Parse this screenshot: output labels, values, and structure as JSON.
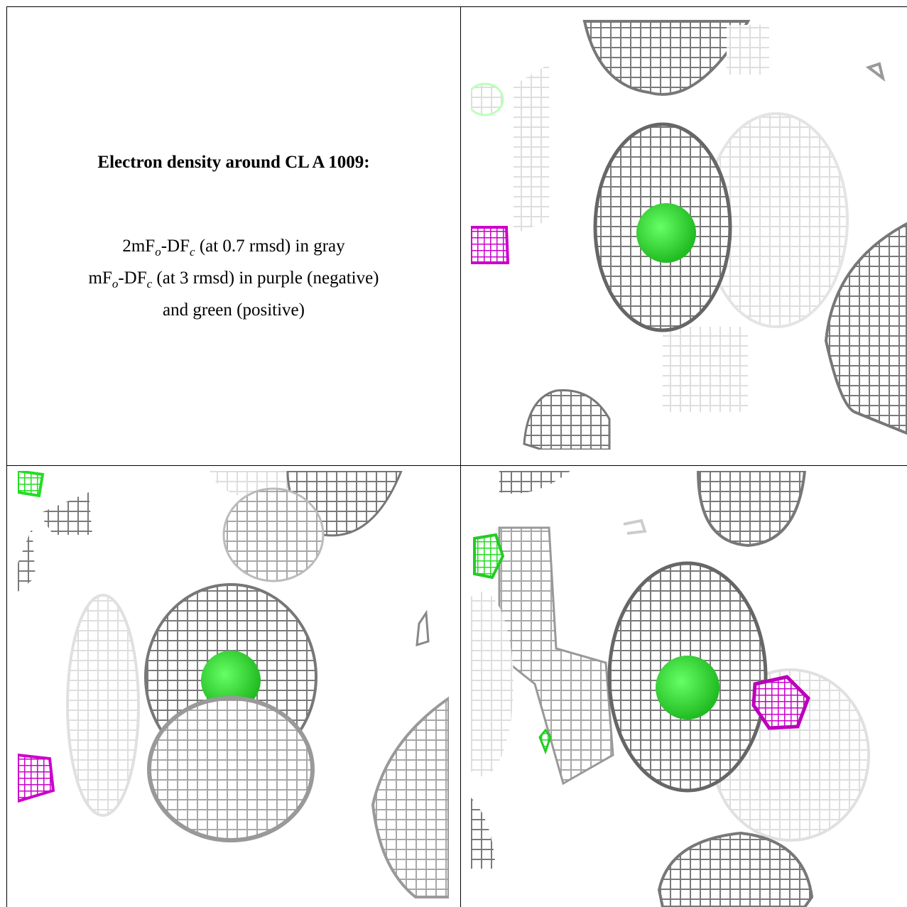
{
  "caption": {
    "title": "Electron density around CL A 1009:",
    "lines": [
      [
        "2mF",
        "o",
        "-DF",
        "c",
        " (at 0.7 rmsd) in gray"
      ],
      [
        "mF",
        "o",
        "-DF",
        "c",
        " (at 3 rmsd) in purple (negative)"
      ],
      [
        "and green (positive)"
      ]
    ]
  }
}
